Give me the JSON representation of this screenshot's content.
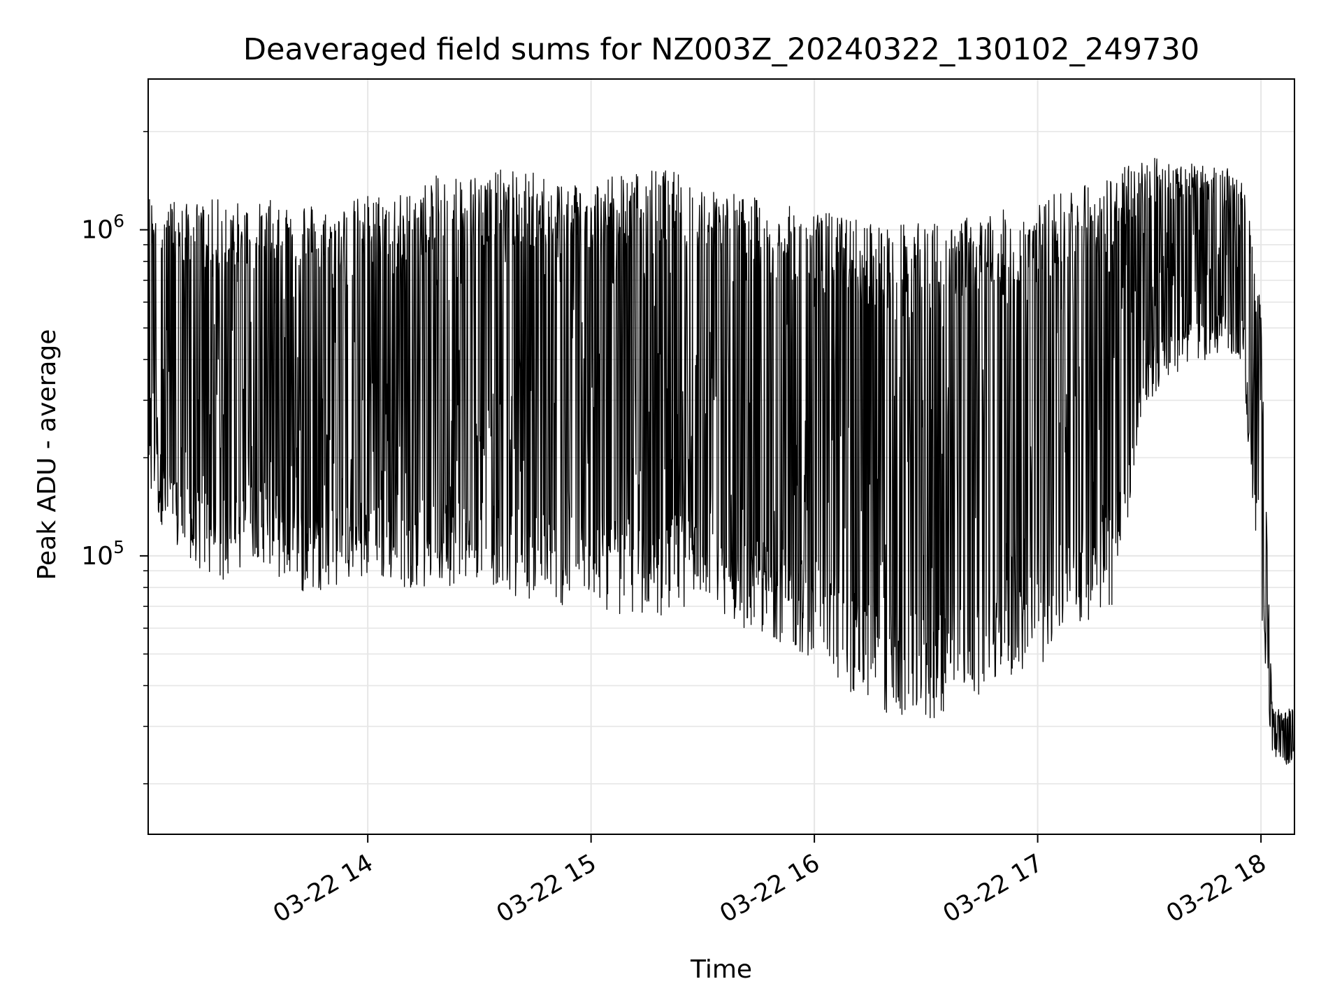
{
  "chart_data": {
    "type": "line",
    "title": "Deaveraged field sums for NZ003Z_20240322_130102_249730",
    "xlabel": "Time",
    "ylabel": "Peak ADU - average",
    "yscale": "log",
    "ylim": [
      14000,
      2900000
    ],
    "xlim": [
      "2024-03-22 13:01",
      "2024-03-22 18:09"
    ],
    "x_ticks": [
      {
        "label": "03-22 14",
        "value": "2024-03-22 14:00"
      },
      {
        "label": "03-22 15",
        "value": "2024-03-22 15:00"
      },
      {
        "label": "03-22 16",
        "value": "2024-03-22 16:00"
      },
      {
        "label": "03-22 17",
        "value": "2024-03-22 17:00"
      },
      {
        "label": "03-22 18",
        "value": "2024-03-22 18:00"
      }
    ],
    "y_ticks": [
      {
        "mantissa": "10",
        "exponent": "5",
        "value": 100000
      },
      {
        "mantissa": "10",
        "exponent": "6",
        "value": 1000000
      }
    ],
    "grid": true,
    "line_color": "#000000",
    "grid_color": "#e6e6e6",
    "series": [
      {
        "x": [
          "2024-03-22 13:01",
          "2024-03-22 13:10",
          "2024-03-22 13:20",
          "2024-03-22 13:30",
          "2024-03-22 13:40",
          "2024-03-22 13:50",
          "2024-03-22 14:00",
          "2024-03-22 14:10",
          "2024-03-22 14:20",
          "2024-03-22 14:30",
          "2024-03-22 14:40",
          "2024-03-22 14:50",
          "2024-03-22 15:00",
          "2024-03-22 15:10",
          "2024-03-22 15:20",
          "2024-03-22 15:30",
          "2024-03-22 15:40",
          "2024-03-22 15:50",
          "2024-03-22 16:00",
          "2024-03-22 16:10",
          "2024-03-22 16:20",
          "2024-03-22 16:30",
          "2024-03-22 16:40",
          "2024-03-22 16:50",
          "2024-03-22 17:00",
          "2024-03-22 17:10",
          "2024-03-22 17:20",
          "2024-03-22 17:30",
          "2024-03-22 17:40",
          "2024-03-22 17:50",
          "2024-03-22 17:55",
          "2024-03-22 17:58",
          "2024-03-22 18:00",
          "2024-03-22 18:03",
          "2024-03-22 18:06",
          "2024-03-22 18:09"
        ],
        "upper": [
          1300000,
          1200000,
          1250000,
          1200000,
          1300000,
          1150000,
          1300000,
          1300000,
          1500000,
          1500000,
          1550000,
          1450000,
          1450000,
          1500000,
          1550000,
          1400000,
          1300000,
          1200000,
          1150000,
          1100000,
          1050000,
          1050000,
          1100000,
          1150000,
          1200000,
          1400000,
          1500000,
          1700000,
          1600000,
          1550000,
          1500000,
          1000000,
          550000,
          35000,
          33000,
          35000
        ],
        "lower": [
          150000,
          95000,
          80000,
          100000,
          75000,
          80000,
          85000,
          80000,
          80000,
          85000,
          75000,
          70000,
          70000,
          65000,
          65000,
          75000,
          60000,
          55000,
          48000,
          38000,
          32000,
          30000,
          36000,
          40000,
          45000,
          60000,
          70000,
          300000,
          380000,
          420000,
          400000,
          120000,
          60000,
          25000,
          22000,
          24000
        ]
      }
    ]
  }
}
